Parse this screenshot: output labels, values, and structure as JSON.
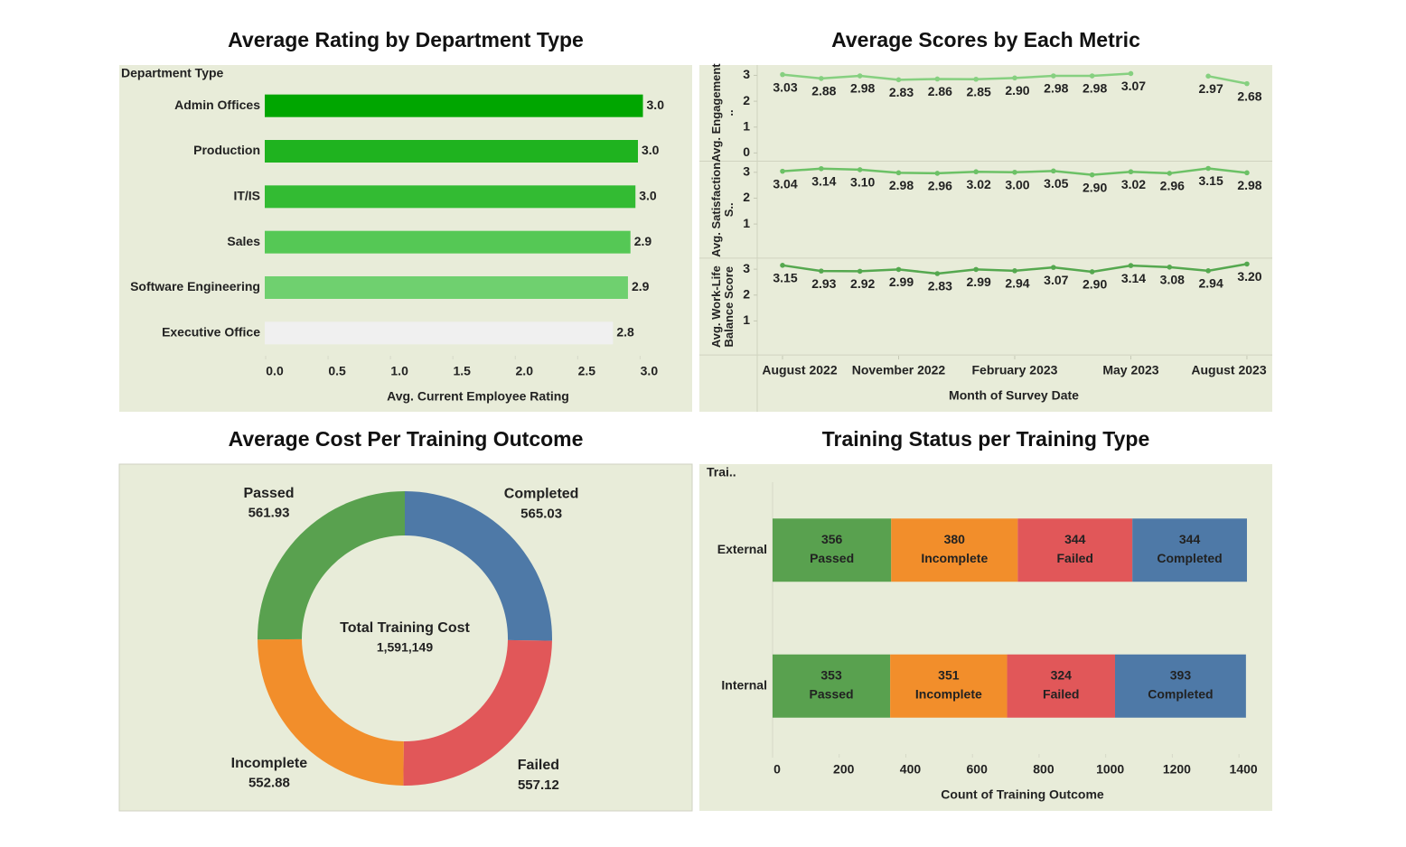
{
  "chart_data": [
    {
      "type": "bar",
      "orientation": "horizontal",
      "title": "Average Rating by Department Type",
      "category_axis_label": "Department Type",
      "x_axis_label": "Avg. Current Employee Rating",
      "categories": [
        "Admin Offices",
        "Production",
        "IT/IS",
        "Sales",
        "Software Engineering",
        "Executive Office"
      ],
      "values": [
        3.03,
        2.99,
        2.97,
        2.93,
        2.91,
        2.79
      ],
      "value_labels": [
        "3.0",
        "3.0",
        "3.0",
        "2.9",
        "2.9",
        "2.8"
      ],
      "colors": [
        "#00a600",
        "#1fb31f",
        "#33bb33",
        "#55c855",
        "#6fd06f",
        "#f0f0f0"
      ],
      "xlim": [
        0,
        3.2
      ],
      "xticks": [
        {
          "value": 0,
          "label": "0.0"
        },
        {
          "value": 0.5,
          "label": "0.5"
        },
        {
          "value": 1,
          "label": "1.0"
        },
        {
          "value": 1.5,
          "label": "1.5"
        },
        {
          "value": 2,
          "label": "2.0"
        },
        {
          "value": 2.5,
          "label": "2.5"
        },
        {
          "value": 3,
          "label": "3.0"
        }
      ]
    },
    {
      "type": "line",
      "title": "Average Scores by Each Metric",
      "x_axis_label": "Month of Survey Date",
      "x": [
        "2022-08",
        "2022-09",
        "2022-10",
        "2022-11",
        "2022-12",
        "2023-01",
        "2023-02",
        "2023-03",
        "2023-04",
        "2023-05",
        "2023-06",
        "2023-07",
        "2023-08"
      ],
      "xticks": [
        {
          "value": "2022-08",
          "label": "August 2022"
        },
        {
          "value": "2022-11",
          "label": "November 2022"
        },
        {
          "value": "2023-02",
          "label": "February 2023"
        },
        {
          "value": "2023-05",
          "label": "May 2023"
        },
        {
          "value": "2023-08",
          "label": "August 2023"
        }
      ],
      "ylim": [
        -0.3,
        3.4
      ],
      "series": [
        {
          "name": "Avg. Engagement ..",
          "color": "#86d080",
          "yticks": [
            0,
            1,
            2,
            3
          ],
          "values": [
            3.03,
            2.88,
            2.98,
            2.83,
            2.86,
            2.85,
            2.9,
            2.98,
            2.98,
            3.07,
            null,
            2.97,
            2.68
          ],
          "value_labels": [
            "3.03",
            "2.88",
            "2.98",
            "2.83",
            "2.86",
            "2.85",
            "2.90",
            "2.98",
            "2.98",
            "3.07",
            null,
            "2.97",
            "2.68"
          ]
        },
        {
          "name": "Avg. Satisfaction S..",
          "color": "#6cc166",
          "yticks": [
            1,
            2,
            3
          ],
          "values": [
            3.04,
            3.14,
            3.1,
            2.98,
            2.96,
            3.02,
            3.0,
            3.05,
            2.9,
            3.02,
            2.96,
            3.15,
            2.98
          ],
          "value_labels": [
            "3.04",
            "3.14",
            "3.10",
            "2.98",
            "2.96",
            "3.02",
            "3.00",
            "3.05",
            "2.90",
            "3.02",
            "2.96",
            "3.15",
            "2.98"
          ]
        },
        {
          "name": "Avg. Work-Life Balance Score",
          "color": "#55a84f",
          "yticks": [
            1,
            2,
            3
          ],
          "values": [
            3.15,
            2.93,
            2.92,
            2.99,
            2.83,
            2.99,
            2.94,
            3.07,
            2.9,
            3.14,
            3.08,
            2.94,
            3.2
          ],
          "value_labels": [
            "3.15",
            "2.93",
            "2.92",
            "2.99",
            "2.83",
            "2.99",
            "2.94",
            "3.07",
            "2.90",
            "3.14",
            "3.08",
            "2.94",
            "3.20"
          ]
        }
      ]
    },
    {
      "type": "pie",
      "hole": true,
      "title": "Average Cost Per Training Outcome",
      "categories": [
        "Completed",
        "Failed",
        "Incomplete",
        "Passed"
      ],
      "values": [
        565.03,
        557.12,
        552.88,
        561.93
      ],
      "colors": [
        "#4e79a7",
        "#e15759",
        "#f28e2b",
        "#59a14f"
      ],
      "center_label": "Total Training Cost",
      "center_value": {
        "value": 1591149,
        "label": "1,591,149"
      }
    },
    {
      "type": "bar",
      "orientation": "horizontal",
      "stacked": true,
      "title": "Training Status per Training Type",
      "category_axis_label": "Trai..",
      "x_axis_label": "Count of Training Outcome",
      "categories": [
        "External",
        "Internal"
      ],
      "series": [
        {
          "name": "Passed",
          "color": "#59a14f",
          "values": [
            356,
            353
          ]
        },
        {
          "name": "Incomplete",
          "color": "#f28e2b",
          "values": [
            380,
            351
          ]
        },
        {
          "name": "Failed",
          "color": "#e15759",
          "values": [
            344,
            324
          ]
        },
        {
          "name": "Completed",
          "color": "#4e79a7",
          "values": [
            344,
            393
          ]
        }
      ],
      "xlim": [
        0,
        1500
      ],
      "xticks": [
        0,
        200,
        400,
        600,
        800,
        1000,
        1200,
        1400
      ]
    }
  ]
}
